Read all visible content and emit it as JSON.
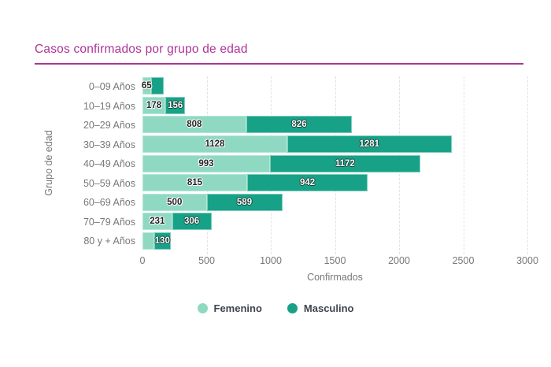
{
  "header": {
    "title": "Casos confirmados por grupo de edad"
  },
  "colors": {
    "title": "#ae3397",
    "femenino": "#8fd9c2",
    "masculino": "#17a287",
    "axis_text": "#75787b",
    "gridline": "#e2e2e2",
    "legend_text": "#3d4450"
  },
  "chart_data": {
    "type": "bar",
    "orientation": "horizontal",
    "stacked": true,
    "title": "Casos confirmados por grupo de edad",
    "xlabel": "Confirmados",
    "ylabel": "Grupo de edad",
    "xlim": [
      0,
      3000
    ],
    "xticks": [
      0,
      500,
      1000,
      1500,
      2000,
      2500,
      3000
    ],
    "grid": "vertical-dashed",
    "legend_position": "bottom-center",
    "categories": [
      "0–09 Años",
      "10–19 Años",
      "20–29 Años",
      "30–39 Años",
      "40–49 Años",
      "50–59 Años",
      "60–69 Años",
      "70–79 Años",
      "80 y + Años"
    ],
    "series": [
      {
        "name": "Femenino",
        "color": "#8fd9c2",
        "values": [
          65,
          178,
          808,
          1128,
          993,
          815,
          500,
          231,
          90
        ],
        "labels_visible": [
          true,
          true,
          true,
          true,
          true,
          true,
          true,
          true,
          false
        ]
      },
      {
        "name": "Masculino",
        "color": "#17a287",
        "values": [
          100,
          156,
          826,
          1281,
          1172,
          942,
          589,
          306,
          130
        ],
        "labels_visible": [
          false,
          true,
          true,
          true,
          true,
          true,
          true,
          true,
          true
        ]
      }
    ]
  },
  "legend": {
    "items": [
      {
        "label": "Femenino"
      },
      {
        "label": "Masculino"
      }
    ]
  }
}
